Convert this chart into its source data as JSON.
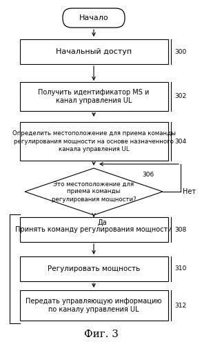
{
  "background_color": "#ffffff",
  "fig_label": "Фиг. 3",
  "no_label": "Нет",
  "yes_label": "Да",
  "start_text": "Начало",
  "b300_text": "Начальный доступ",
  "b300_label": "300",
  "b302_text": "Получить идентификатор MS и\nканал управления UL",
  "b302_label": "302",
  "b304_text": "Определить местоположение для приема команды\nрегулирования мощности на основе назначенного\nканала управления UL",
  "b304_label": "304",
  "b306_text": "Это местоположение для\nприема команды\nрегулирования мощности?",
  "b306_label": "306",
  "b308_text": "Принять команду регулирования мощности",
  "b308_label": "308",
  "b310_text": "Регулировать мощность",
  "b310_label": "310",
  "b312_text": "Передать управляющую информацию\nпо каналу управления UL",
  "b312_label": "312"
}
